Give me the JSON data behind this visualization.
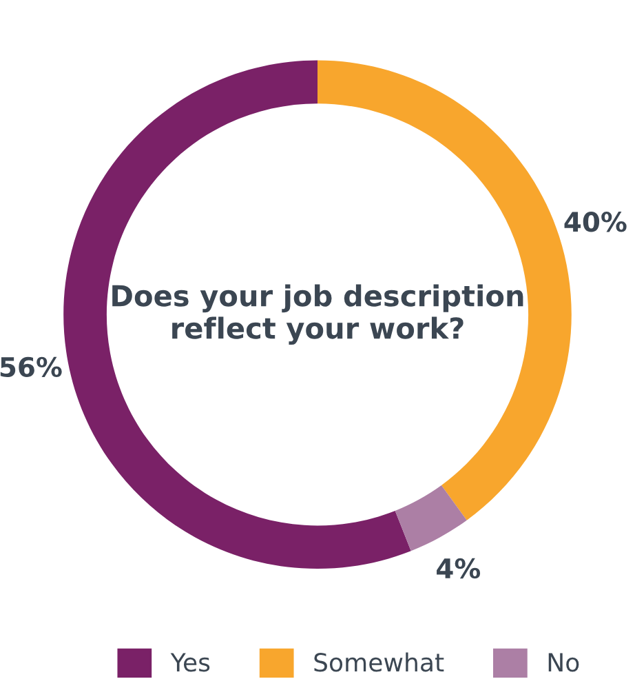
{
  "chart_data": {
    "type": "donut",
    "title": "Does your job description reflect your work?",
    "categories": [
      "Yes",
      "Somewhat",
      "No"
    ],
    "values": [
      56,
      40,
      4
    ],
    "value_labels": [
      "56%",
      "40%",
      "4%"
    ],
    "colors": [
      "#7a2167",
      "#f8a62d",
      "#ac7fa5"
    ],
    "legend": "bottom"
  }
}
